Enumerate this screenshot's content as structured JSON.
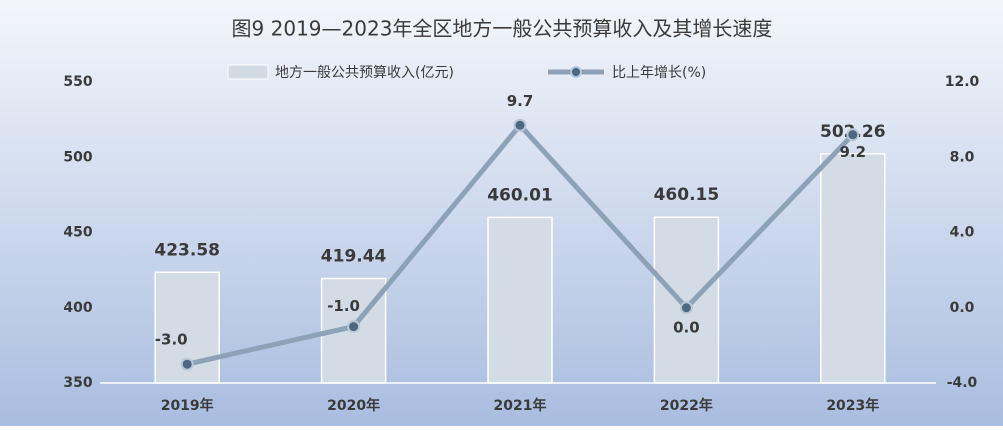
{
  "chart_data": {
    "type": "bar",
    "title": "图9  2019—2023年全区地方一般公共预算收入及其增长速度",
    "categories": [
      "2019年",
      "2020年",
      "2021年",
      "2022年",
      "2023年"
    ],
    "series": [
      {
        "name": "地方一般公共预算收入(亿元)",
        "type": "bar",
        "color": "#d3dbe4",
        "values": [
          423.58,
          419.44,
          460.01,
          460.15,
          502.26
        ]
      },
      {
        "name": "比上年增长(%)",
        "type": "line",
        "axis": "y2",
        "color": "#8da2b6",
        "values": [
          -3.0,
          -1.0,
          9.7,
          0.0,
          9.2
        ],
        "value_labels": [
          "-3.0",
          "-1.0",
          "9.7",
          "0.0",
          "9.2"
        ]
      }
    ],
    "ylim": [
      350,
      550
    ],
    "yticks": [
      350,
      400,
      450,
      500,
      550
    ],
    "y2lim": [
      -4,
      12
    ],
    "y2ticks": [
      {
        "value": -4,
        "label": "-4.0"
      },
      {
        "value": 0,
        "label": "0.0"
      },
      {
        "value": 4,
        "label": "4.0"
      },
      {
        "value": 8,
        "label": "8.0"
      },
      {
        "value": 12,
        "label": "12.0"
      }
    ]
  }
}
